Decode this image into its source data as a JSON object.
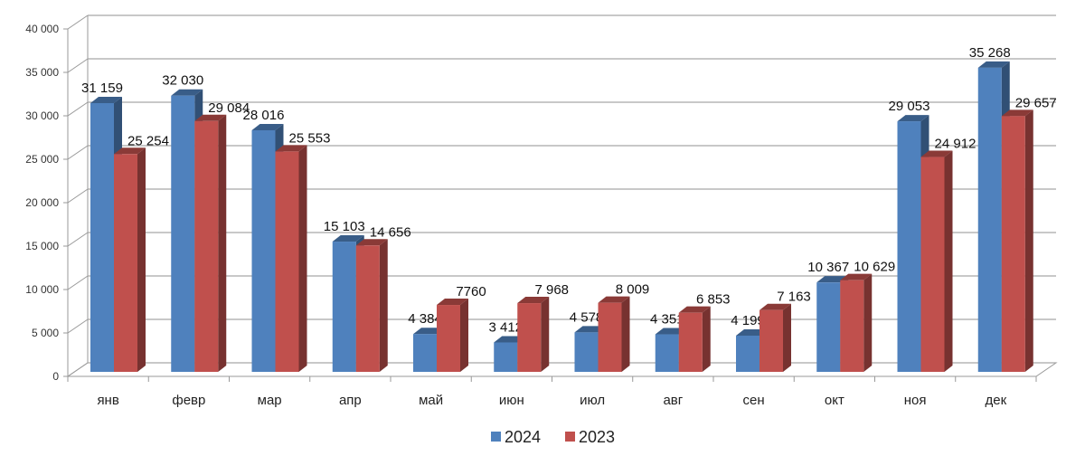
{
  "chart_data": {
    "type": "bar",
    "variant": "3d-clustered-column",
    "title": "",
    "xlabel": "",
    "ylabel": "",
    "categories": [
      "янв",
      "февр",
      "мар",
      "апр",
      "май",
      "июн",
      "июл",
      "авг",
      "сен",
      "окт",
      "ноя",
      "дек"
    ],
    "series": [
      {
        "name": "2024",
        "color": "#4F81BD",
        "values": [
          31159,
          32030,
          28016,
          15103,
          4384,
          3412,
          4578,
          4351,
          4199,
          10367,
          29053,
          35268
        ],
        "labels": [
          "31 159",
          "32 030",
          "28 016",
          "15 103",
          "4 384",
          "3 412",
          "4 578",
          "4 351",
          "4 199",
          "10 367",
          "29 053",
          "35 268"
        ]
      },
      {
        "name": "2023",
        "color": "#C0504D",
        "values": [
          25254,
          29084,
          25553,
          14656,
          7760,
          7968,
          8009,
          6853,
          7163,
          10629,
          24912,
          29657
        ],
        "labels": [
          "25 254",
          "29 084",
          "25 553",
          "14 656",
          "7760",
          "7 968",
          "8 009",
          "6 853",
          "7 163",
          "10 629",
          "24 912",
          "29 657"
        ]
      }
    ],
    "ylim": [
      0,
      40000
    ],
    "yticks": [
      0,
      5000,
      10000,
      15000,
      20000,
      25000,
      30000,
      35000,
      40000
    ],
    "ytick_labels": [
      "0",
      "5 000",
      "10 000",
      "15 000",
      "20 000",
      "25 000",
      "30 000",
      "35 000",
      "40 000"
    ],
    "grid": true,
    "legend_position": "bottom"
  }
}
